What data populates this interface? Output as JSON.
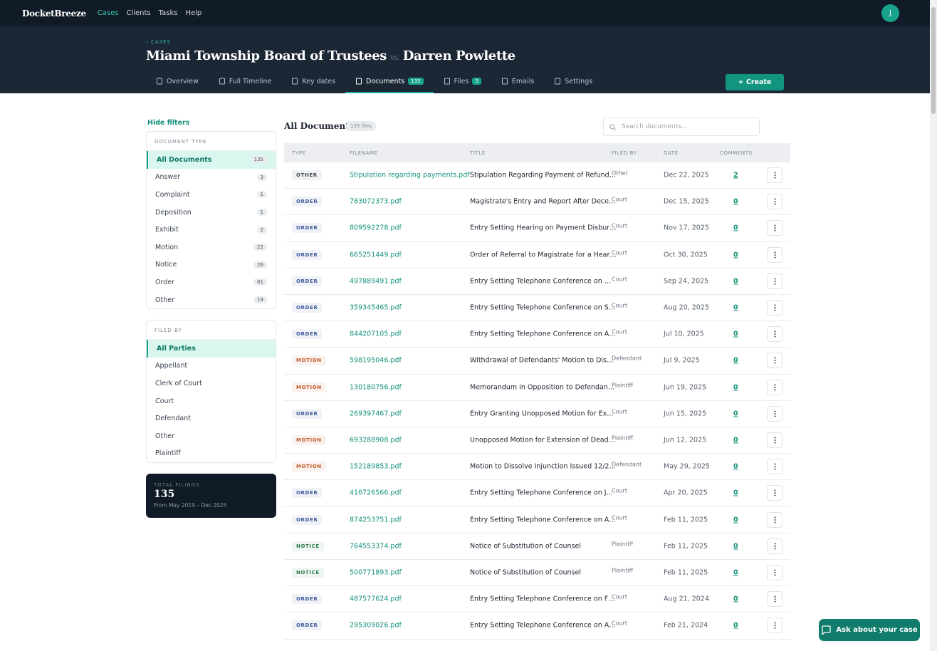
{
  "nav": {
    "brand": "DocketBreeze",
    "links": [
      "Cases",
      "Clients",
      "Tasks",
      "Help"
    ],
    "avatar": "J"
  },
  "header": {
    "breadcrumb": "‹ CASES",
    "title": "Miami Township Board of Trustees",
    "vs": "vs.",
    "opponent": "Darren Powlette",
    "tabs": [
      {
        "label": "Overview"
      },
      {
        "label": "Full Timeline"
      },
      {
        "label": "Key dates"
      },
      {
        "label": "Documents",
        "badge": 135,
        "active": true
      },
      {
        "label": "Files",
        "badge": 5
      },
      {
        "label": "Emails"
      },
      {
        "label": "Settings"
      }
    ],
    "create": "+ Create"
  },
  "sidebar": {
    "hide": "Hide filters",
    "doc_type": {
      "heading": "DOCUMENT TYPE",
      "items": [
        {
          "label": "All Documents",
          "count": 135,
          "active": true
        },
        {
          "label": "Answer",
          "count": 3
        },
        {
          "label": "Complaint",
          "count": 1
        },
        {
          "label": "Deposition",
          "count": 1
        },
        {
          "label": "Exhibit",
          "count": 2
        },
        {
          "label": "Motion",
          "count": 22
        },
        {
          "label": "Notice",
          "count": 26
        },
        {
          "label": "Order",
          "count": 61
        },
        {
          "label": "Other",
          "count": 19
        }
      ]
    },
    "filed_by": {
      "heading": "FILED BY",
      "items": [
        {
          "label": "All Parties",
          "active": true
        },
        {
          "label": "Appellant"
        },
        {
          "label": "Clerk of Court"
        },
        {
          "label": "Court"
        },
        {
          "label": "Defendant"
        },
        {
          "label": "Other"
        },
        {
          "label": "Plaintiff"
        }
      ]
    },
    "total": {
      "label": "TOTAL FILINGS",
      "value": 135,
      "range": "From May 2019 – Dec 2025"
    }
  },
  "table": {
    "title": "All Documents",
    "files": "135 files",
    "search": "Search documents...",
    "columns": [
      "TYPE",
      "FILENAME",
      "TITLE",
      "FILED BY",
      "DATE",
      "COMMENTS"
    ],
    "rows": [
      {
        "type": "OTHER",
        "color": "#444b55",
        "filename": "Stipulation regarding payments.pdf",
        "title": "Stipulation Regarding Payment of Refund…",
        "filed_by": "Other",
        "date": "Dec 22, 2025",
        "comments": 2
      },
      {
        "type": "ORDER",
        "color": "#3d5a99",
        "filename": "783072373.pdf",
        "title": "Magistrate's Entry and Report After Dece…",
        "filed_by": "Court",
        "date": "Dec 15, 2025",
        "comments": 0
      },
      {
        "type": "ORDER",
        "color": "#3d5a99",
        "filename": "809592278.pdf",
        "title": "Entry Setting Hearing on Payment Disbur…",
        "filed_by": "Court",
        "date": "Nov 17, 2025",
        "comments": 0
      },
      {
        "type": "ORDER",
        "color": "#3d5a99",
        "filename": "665251449.pdf",
        "title": "Order of Referral to Magistrate for a Hear…",
        "filed_by": "Court",
        "date": "Oct 30, 2025",
        "comments": 0
      },
      {
        "type": "ORDER",
        "color": "#3d5a99",
        "filename": "497889491.pdf",
        "title": "Entry Setting Telephone Conference on …",
        "filed_by": "Court",
        "date": "Sep 24, 2025",
        "comments": 0
      },
      {
        "type": "ORDER",
        "color": "#3d5a99",
        "filename": "359345465.pdf",
        "title": "Entry Setting Telephone Conference on S…",
        "filed_by": "Court",
        "date": "Aug 20, 2025",
        "comments": 0
      },
      {
        "type": "ORDER",
        "color": "#3d5a99",
        "filename": "844207105.pdf",
        "title": "Entry Setting Telephone Conference on A…",
        "filed_by": "Court",
        "date": "Jul 10, 2025",
        "comments": 0
      },
      {
        "type": "MOTION",
        "color": "#c2572b",
        "filename": "598195046.pdf",
        "title": "Withdrawal of Defendants' Motion to Dis…",
        "filed_by": "Defendant",
        "date": "Jul 9, 2025",
        "comments": 0
      },
      {
        "type": "MOTION",
        "color": "#c2572b",
        "filename": "130180756.pdf",
        "title": "Memorandum in Opposition to Defendan…",
        "filed_by": "Plaintiff",
        "date": "Jun 19, 2025",
        "comments": 0
      },
      {
        "type": "ORDER",
        "color": "#3d5a99",
        "filename": "269397467.pdf",
        "title": "Entry Granting Unopposed Motion for Ex…",
        "filed_by": "Court",
        "date": "Jun 15, 2025",
        "comments": 0
      },
      {
        "type": "MOTION",
        "color": "#c2572b",
        "filename": "693288908.pdf",
        "title": "Unopposed Motion for Extension of Dead…",
        "filed_by": "Plaintiff",
        "date": "Jun 12, 2025",
        "comments": 0
      },
      {
        "type": "MOTION",
        "color": "#c2572b",
        "filename": "152189853.pdf",
        "title": "Motion to Dissolve Injunction Issued 12/2…",
        "filed_by": "Defendant",
        "date": "May 29, 2025",
        "comments": 0
      },
      {
        "type": "ORDER",
        "color": "#3d5a99",
        "filename": "416726566.pdf",
        "title": "Entry Setting Telephone Conference on J…",
        "filed_by": "Court",
        "date": "Apr 20, 2025",
        "comments": 0
      },
      {
        "type": "ORDER",
        "color": "#3d5a99",
        "filename": "874253751.pdf",
        "title": "Entry Setting Telephone Conference on A…",
        "filed_by": "Court",
        "date": "Feb 11, 2025",
        "comments": 0
      },
      {
        "type": "NOTICE",
        "color": "#2e7d4f",
        "filename": "764553374.pdf",
        "title": "Notice of Substitution of Counsel",
        "filed_by": "Plaintiff",
        "date": "Feb 11, 2025",
        "comments": 0
      },
      {
        "type": "NOTICE",
        "color": "#2e7d4f",
        "filename": "500771893.pdf",
        "title": "Notice of Substitution of Counsel",
        "filed_by": "Plaintiff",
        "date": "Feb 11, 2025",
        "comments": 0
      },
      {
        "type": "ORDER",
        "color": "#3d5a99",
        "filename": "487577624.pdf",
        "title": "Entry Setting Telephone Conference on F…",
        "filed_by": "Court",
        "date": "Aug 21, 2024",
        "comments": 0
      },
      {
        "type": "ORDER",
        "color": "#3d5a99",
        "filename": "295309026.pdf",
        "title": "Entry Setting Telephone Conference on A…",
        "filed_by": "Court",
        "date": "Feb 21, 2024",
        "comments": 0
      }
    ]
  },
  "chat": "Ask about your case"
}
